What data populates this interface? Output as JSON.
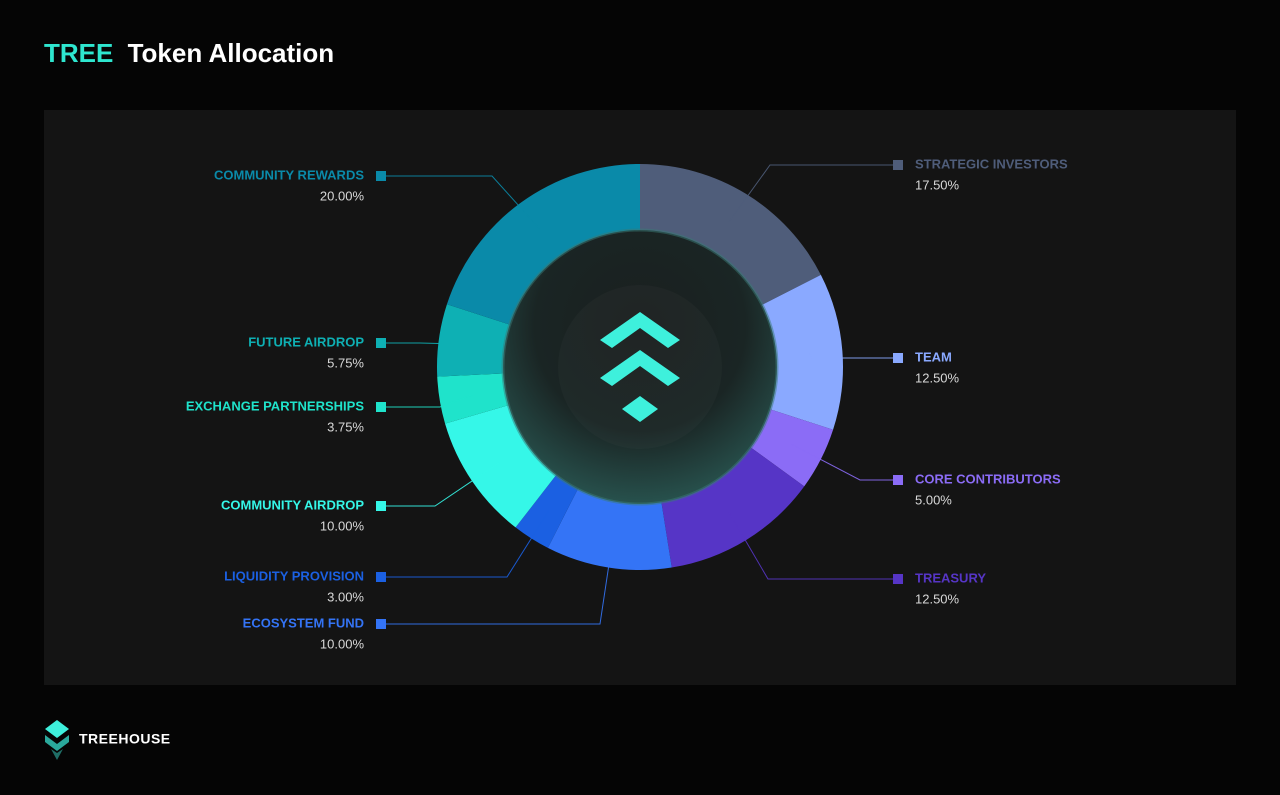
{
  "chart_data": {
    "type": "donut",
    "title_token": "TREE",
    "title": "Token Allocation",
    "categories": [
      "STRATEGIC INVESTORS",
      "TEAM",
      "CORE CONTRIBUTORS",
      "TREASURY",
      "ECOSYSTEM FUND",
      "LIQUIDITY PROVISION",
      "COMMUNITY AIRDROP",
      "EXCHANGE PARTNERSHIPS",
      "FUTURE AIRDROP",
      "COMMUNITY REWARDS"
    ],
    "values": [
      17.5,
      12.5,
      5,
      12.5,
      10,
      3,
      10,
      3.75,
      5.75,
      20
    ],
    "value_labels": [
      "17.50%",
      "12.50%",
      "5.00%",
      "12.50%",
      "10.00%",
      "3.00%",
      "10.00%",
      "3.75%",
      "5.75%",
      "20.00%"
    ],
    "colors": [
      "#4f5d7a",
      "#8aa9ff",
      "#8b6cf6",
      "#5635c6",
      "#3474f6",
      "#1b60e2",
      "#35f7e8",
      "#1fe3cb",
      "#0eb0b4",
      "#0a8aa9"
    ]
  },
  "footer": {
    "brand": "TREEHOUSE"
  }
}
